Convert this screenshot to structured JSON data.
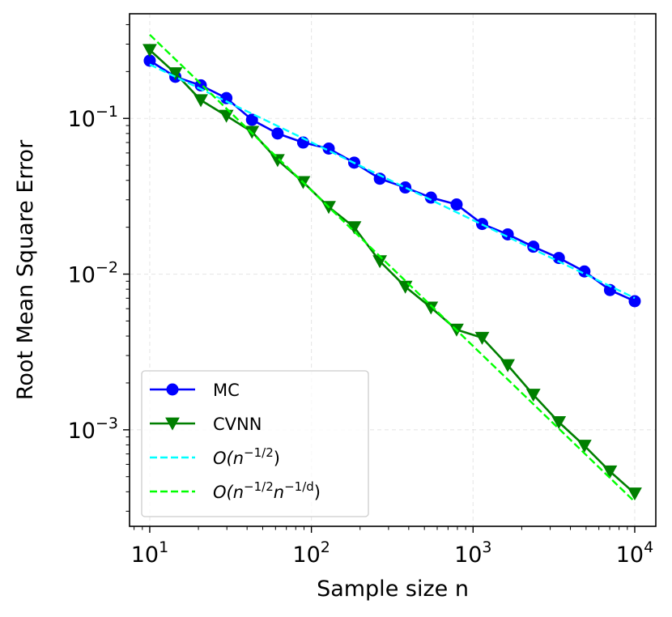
{
  "chart_data": {
    "type": "line",
    "xscale": "log",
    "yscale": "log",
    "xlabel": "Sample size n",
    "ylabel": "Root Mean Square Error",
    "xlim": [
      7.5,
      13500
    ],
    "ylim": [
      0.00024,
      0.47
    ],
    "grid": true,
    "legend_position": "lower-left",
    "xticks": [
      {
        "value": 10,
        "base": "10",
        "exp": "1"
      },
      {
        "value": 100,
        "base": "10",
        "exp": "2"
      },
      {
        "value": 1000,
        "base": "10",
        "exp": "3"
      },
      {
        "value": 10000,
        "base": "10",
        "exp": "4"
      }
    ],
    "yticks": [
      {
        "value": 0.001,
        "base": "10",
        "exp": "−3"
      },
      {
        "value": 0.01,
        "base": "10",
        "exp": "−2"
      },
      {
        "value": 0.1,
        "base": "10",
        "exp": "−1"
      }
    ],
    "series": [
      {
        "name": "MC",
        "style": "solid",
        "marker": "circle",
        "color": "#0000ff",
        "x": [
          10,
          14.4,
          20.7,
          29.8,
          42.9,
          61.8,
          88.9,
          128,
          184,
          265,
          381,
          549,
          791,
          1138,
          1638,
          2359,
          3393,
          4884,
          7030,
          10000
        ],
        "y": [
          0.235,
          0.185,
          0.163,
          0.135,
          0.098,
          0.08,
          0.07,
          0.064,
          0.052,
          0.041,
          0.036,
          0.031,
          0.028,
          0.021,
          0.018,
          0.015,
          0.0127,
          0.0104,
          0.0079,
          0.0067
        ]
      },
      {
        "name": "CVNN",
        "style": "solid",
        "marker": "triangle-down",
        "color": "#007f00",
        "x": [
          10,
          14.4,
          20.7,
          29.8,
          42.9,
          61.8,
          88.9,
          128,
          184,
          265,
          381,
          549,
          791,
          1138,
          1638,
          2359,
          3393,
          4884,
          7030,
          10000
        ],
        "y": [
          0.275,
          0.195,
          0.131,
          0.104,
          0.082,
          0.054,
          0.039,
          0.027,
          0.02,
          0.0121,
          0.0083,
          0.0061,
          0.0044,
          0.0039,
          0.0026,
          0.00168,
          0.00112,
          0.00079,
          0.00054,
          0.00039
        ]
      },
      {
        "name": "O(n^{-1/2})",
        "label_main": "O(n",
        "label_sup": "−1/2",
        "label_tail": ")",
        "style": "dashed",
        "color": "#00ffff",
        "x": [
          10,
          10000
        ],
        "y": [
          0.222,
          0.00702
        ]
      },
      {
        "name": "O(n^{-1/2}n^{-1/d})",
        "label_main": "O(n",
        "label_sup": "−1/2",
        "label_mid": "n",
        "label_sup2": "−1/d",
        "label_tail": ")",
        "style": "dashed",
        "color": "#00ff00",
        "x": [
          10,
          10000
        ],
        "y": [
          0.345,
          0.000345
        ]
      }
    ]
  }
}
